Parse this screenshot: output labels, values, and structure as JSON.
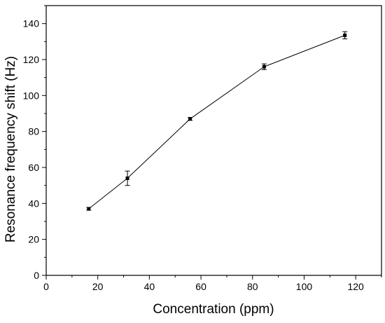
{
  "chart_data": {
    "type": "line",
    "xlabel": "Concentration (ppm)",
    "ylabel": "Resonance frequency shift (Hz)",
    "xlim": [
      0,
      130
    ],
    "ylim": [
      0,
      150
    ],
    "xticks": [
      0,
      20,
      40,
      60,
      80,
      100,
      120
    ],
    "yticks": [
      0,
      20,
      40,
      60,
      80,
      100,
      120,
      140
    ],
    "grid": false,
    "legend": "none",
    "series": [
      {
        "x": [
          16.5,
          31.5,
          55.8,
          84.5,
          115.8
        ],
        "y": [
          37.0,
          54.0,
          87.0,
          116.0,
          133.5
        ],
        "error": [
          0.8,
          4.0,
          0.8,
          1.6,
          2.0
        ],
        "color": "#000000",
        "marker": "square"
      }
    ]
  }
}
